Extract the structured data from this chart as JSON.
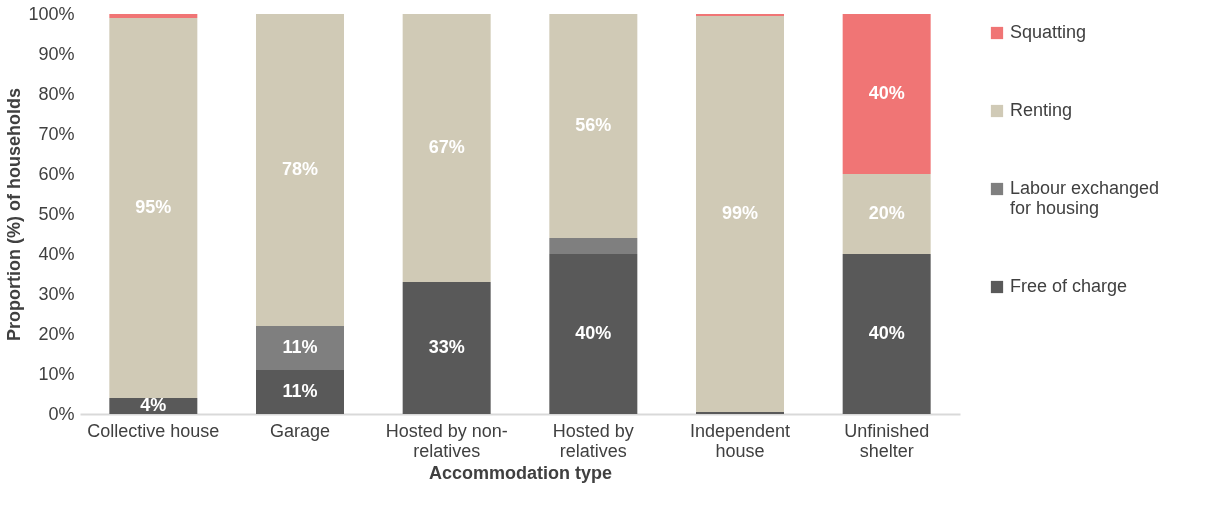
{
  "chart_data": {
    "type": "bar",
    "stacked": true,
    "xlabel": "Accommodation type",
    "ylabel": "Proportion (%) of households",
    "categories": [
      "Collective house",
      "Garage",
      "Hosted by non-relatives",
      "Hosted by relatives",
      "Independent house",
      "Unfinished shelter"
    ],
    "series": [
      {
        "name": "Free of charge",
        "color": "#595959",
        "values": [
          4,
          11,
          33,
          40,
          0.5,
          40
        ],
        "value_labels": [
          "4%",
          "11%",
          "33%",
          "40%",
          null,
          "40%"
        ]
      },
      {
        "name": "Labour exchanged for housing",
        "color": "#7f7f7f",
        "values": [
          0,
          11,
          0,
          4,
          0,
          0
        ],
        "value_labels": [
          null,
          "11%",
          null,
          null,
          null,
          null
        ]
      },
      {
        "name": "Renting",
        "color": "#d0cab6",
        "values": [
          95,
          78,
          67,
          56,
          99,
          20
        ],
        "value_labels": [
          "95%",
          "78%",
          "67%",
          "56%",
          "99%",
          "20%"
        ]
      },
      {
        "name": "Squatting",
        "color": "#f07575",
        "values": [
          1,
          0,
          0,
          0,
          0.5,
          40
        ],
        "value_labels": [
          null,
          null,
          null,
          null,
          null,
          "40%"
        ]
      }
    ],
    "ylim": [
      0,
      100
    ],
    "yticks": [
      {
        "value": 0,
        "label": "0%"
      },
      {
        "value": 10,
        "label": "10%"
      },
      {
        "value": 20,
        "label": "20%"
      },
      {
        "value": 30,
        "label": "30%"
      },
      {
        "value": 40,
        "label": "40%"
      },
      {
        "value": 50,
        "label": "50%"
      },
      {
        "value": 60,
        "label": "60%"
      },
      {
        "value": 70,
        "label": "70%"
      },
      {
        "value": 80,
        "label": "80%"
      },
      {
        "value": 90,
        "label": "90%"
      },
      {
        "value": 100,
        "label": "100%"
      }
    ],
    "legend": "right",
    "grid": false
  }
}
